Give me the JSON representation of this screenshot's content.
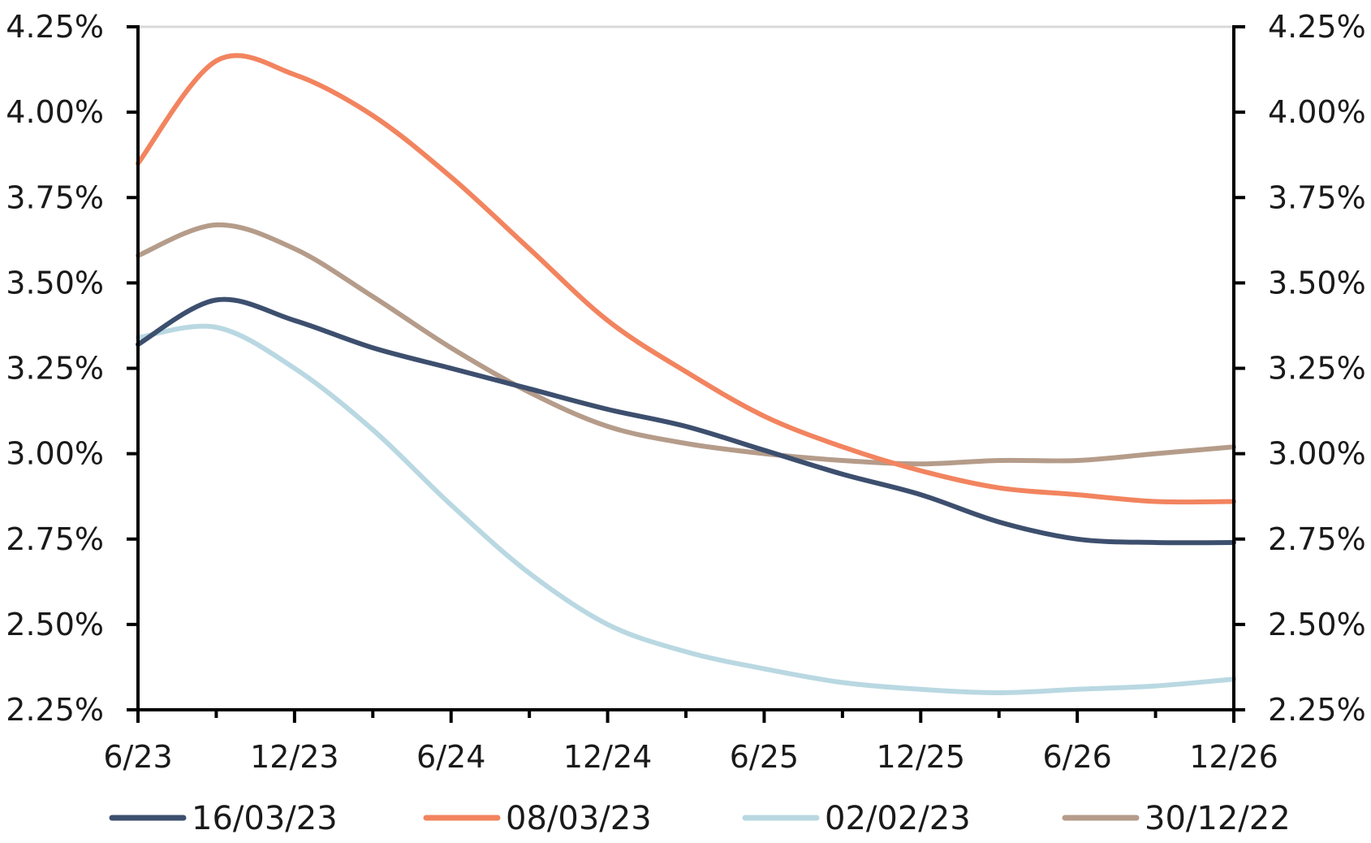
{
  "chart_data": {
    "type": "line",
    "title": "",
    "xlabel": "",
    "ylabel": "",
    "x_ticks": [
      "6/23",
      "12/23",
      "6/24",
      "12/24",
      "6/25",
      "12/25",
      "6/26",
      "12/26"
    ],
    "y_ticks": [
      "2.25%",
      "2.50%",
      "2.75%",
      "3.00%",
      "3.25%",
      "3.50%",
      "3.75%",
      "4.00%",
      "4.25%"
    ],
    "ylim": [
      2.25,
      4.25
    ],
    "xlim": [
      "2023-06",
      "2026-12"
    ],
    "dual_y_axis": true,
    "grid": false,
    "legend_position": "bottom",
    "x": [
      "2023-06",
      "2023-09",
      "2023-12",
      "2024-03",
      "2024-06",
      "2024-09",
      "2024-12",
      "2025-03",
      "2025-06",
      "2025-09",
      "2025-12",
      "2026-03",
      "2026-06",
      "2026-09",
      "2026-12"
    ],
    "series": [
      {
        "name": "16/03/23",
        "color": "#3d4f6e",
        "values": [
          3.32,
          3.45,
          3.39,
          3.31,
          3.25,
          3.19,
          3.13,
          3.08,
          3.01,
          2.94,
          2.88,
          2.8,
          2.75,
          2.74,
          2.74
        ]
      },
      {
        "name": "08/03/23",
        "color": "#f2845f",
        "values": [
          3.85,
          4.15,
          4.11,
          3.99,
          3.81,
          3.6,
          3.39,
          3.24,
          3.11,
          3.02,
          2.95,
          2.9,
          2.88,
          2.86,
          2.86
        ]
      },
      {
        "name": "02/02/23",
        "color": "#b9d8e2",
        "values": [
          3.34,
          3.37,
          3.25,
          3.07,
          2.85,
          2.65,
          2.5,
          2.42,
          2.37,
          2.33,
          2.31,
          2.3,
          2.31,
          2.32,
          2.34
        ]
      },
      {
        "name": "30/12/22",
        "color": "#b59c8a",
        "values": [
          3.58,
          3.67,
          3.6,
          3.46,
          3.31,
          3.18,
          3.08,
          3.03,
          3.0,
          2.98,
          2.97,
          2.98,
          2.98,
          3.0,
          3.02
        ]
      }
    ]
  }
}
